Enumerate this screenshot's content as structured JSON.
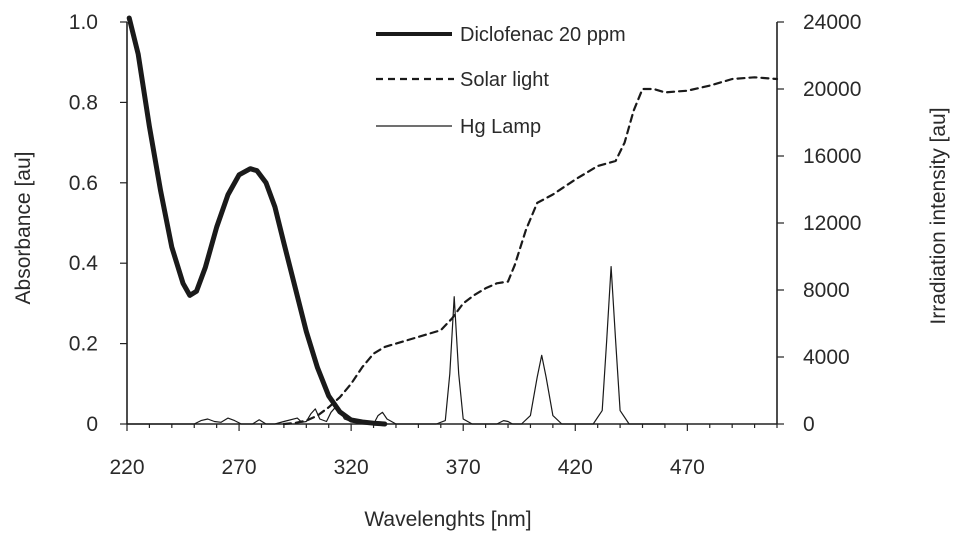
{
  "chart_data": {
    "type": "line",
    "xlabel": "Wavelenghts [nm]",
    "ylabel_left": "Absorbance [au]",
    "ylabel_right": "Irradiation intensity [au]",
    "xlim": [
      220,
      510
    ],
    "ylim_left": [
      0,
      1.0
    ],
    "ylim_right": [
      0,
      24000
    ],
    "x_ticks": [
      220,
      270,
      320,
      370,
      420,
      470
    ],
    "x_tick_labels": [
      "220",
      "270",
      "320",
      "370",
      "420",
      "470"
    ],
    "y_left_ticks": [
      0,
      0.2,
      0.4,
      0.6,
      0.8,
      1.0
    ],
    "y_left_tick_labels": [
      "0",
      "0.2",
      "0.4",
      "0.6",
      "0.8",
      "1.0"
    ],
    "y_right_ticks": [
      0,
      4000,
      8000,
      12000,
      16000,
      20000,
      24000
    ],
    "y_right_tick_labels": [
      "0",
      "4000",
      "8000",
      "12000",
      "16000",
      "20000",
      "24000"
    ],
    "grid": false,
    "legend_position": "top-center",
    "series": [
      {
        "name": "Diclofenac 20 ppm",
        "axis": "left",
        "style": "solid-thick",
        "color": "#1a1a1a",
        "x": [
          221,
          225,
          230,
          235,
          240,
          245,
          248,
          251,
          255,
          260,
          265,
          270,
          275,
          278,
          282,
          286,
          290,
          295,
          300,
          305,
          310,
          315,
          320,
          325,
          330,
          335
        ],
        "y": [
          1.02,
          0.92,
          0.74,
          0.58,
          0.44,
          0.35,
          0.32,
          0.33,
          0.39,
          0.49,
          0.57,
          0.62,
          0.635,
          0.63,
          0.6,
          0.54,
          0.45,
          0.34,
          0.23,
          0.14,
          0.07,
          0.03,
          0.01,
          0.005,
          0.002,
          0.0
        ]
      },
      {
        "name": "Solar light",
        "axis": "right",
        "style": "dashed",
        "color": "#1a1a1a",
        "x": [
          290,
          295,
          300,
          305,
          310,
          315,
          320,
          325,
          330,
          335,
          340,
          350,
          360,
          365,
          370,
          375,
          380,
          385,
          390,
          393,
          398,
          403,
          410,
          420,
          430,
          438,
          442,
          446,
          450,
          455,
          460,
          470,
          480,
          490,
          500,
          510
        ],
        "y": [
          0,
          60,
          200,
          500,
          1000,
          1600,
          2400,
          3400,
          4200,
          4600,
          4800,
          5200,
          5600,
          6300,
          7200,
          7700,
          8100,
          8400,
          8500,
          9500,
          11600,
          13200,
          13700,
          14600,
          15400,
          15700,
          16800,
          18700,
          20000,
          20000,
          19800,
          19900,
          20200,
          20600,
          20700,
          20600
        ]
      },
      {
        "name": "Hg Lamp",
        "axis": "right",
        "style": "solid-thin",
        "color": "#1a1a1a",
        "x": [
          220,
          250,
          253,
          256,
          259,
          262,
          265,
          268,
          271,
          276,
          279,
          282,
          286,
          290,
          296,
          298,
          300,
          302,
          304,
          306,
          309,
          311,
          313,
          315,
          317,
          320,
          324,
          330,
          332,
          334,
          336,
          340,
          350,
          358,
          362,
          364,
          366,
          368,
          370,
          374,
          380,
          385,
          388,
          390,
          392,
          396,
          400,
          403,
          405,
          407,
          410,
          414,
          420,
          428,
          432,
          434,
          436,
          438,
          440,
          444,
          450,
          460
        ],
        "y": [
          0,
          0,
          200,
          300,
          150,
          100,
          350,
          200,
          0,
          0,
          250,
          0,
          0,
          150,
          350,
          100,
          150,
          600,
          900,
          300,
          150,
          700,
          1000,
          800,
          300,
          150,
          50,
          0,
          500,
          700,
          300,
          0,
          0,
          0,
          200,
          3000,
          7600,
          3000,
          300,
          0,
          0,
          0,
          200,
          150,
          0,
          0,
          500,
          2800,
          4100,
          2800,
          500,
          0,
          0,
          0,
          800,
          5000,
          9400,
          5000,
          800,
          0,
          0,
          0
        ]
      }
    ]
  }
}
